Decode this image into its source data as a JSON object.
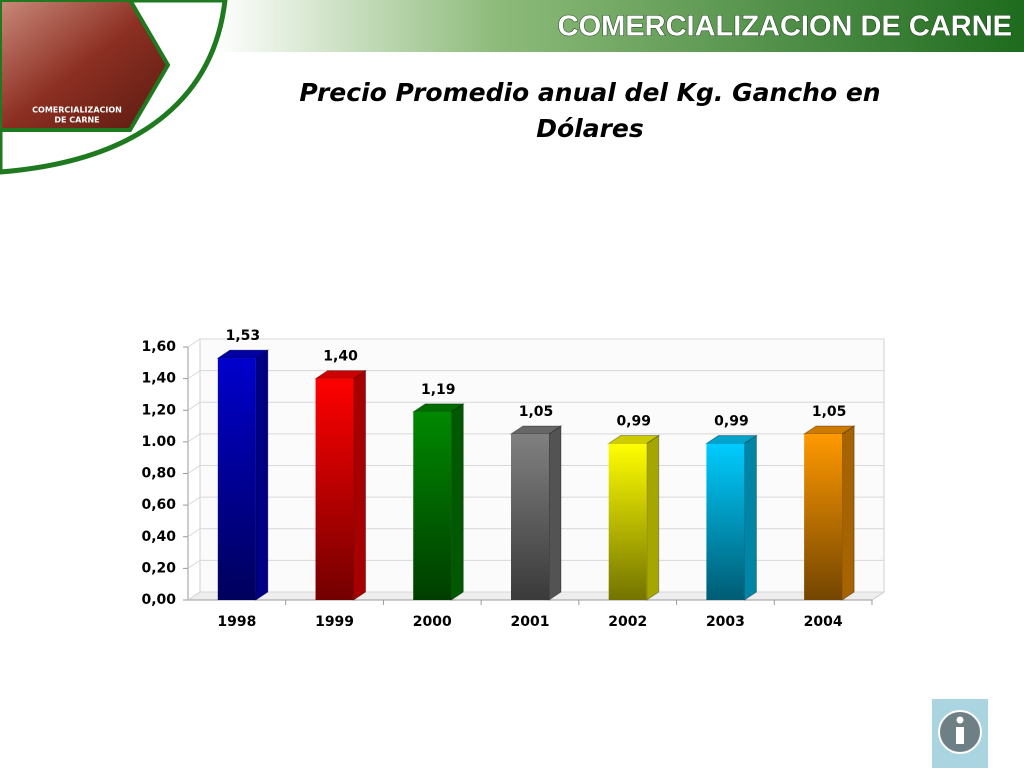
{
  "header": {
    "title": "COMERCIALIZACION DE CARNE"
  },
  "logo": {
    "lines": [
      "COMERCIALIZACION",
      "DE CARNE"
    ]
  },
  "chart_data": {
    "type": "bar3d",
    "title": [
      "Precio Promedio anual del Kg. Gancho en",
      "Dólares"
    ],
    "categories": [
      "1998",
      "1999",
      "2000",
      "2001",
      "2002",
      "2003",
      "2004"
    ],
    "values": [
      1.53,
      1.4,
      1.19,
      1.05,
      0.99,
      0.99,
      1.05
    ],
    "value_labels": [
      "1,53",
      "1,40",
      "1,19",
      "1,05",
      "0,99",
      "0,99",
      "1,05"
    ],
    "colors": [
      "#0000cc",
      "#ff0000",
      "#008800",
      "#808080",
      "#ffff00",
      "#00ccff",
      "#ff9900"
    ],
    "ylim": [
      0,
      1.6
    ],
    "yticks": [
      {
        "value": 0,
        "label": "0,00"
      },
      {
        "value": 0.2,
        "label": "0,20"
      },
      {
        "value": 0.4,
        "label": "0,40"
      },
      {
        "value": 0.6,
        "label": "0,60"
      },
      {
        "value": 0.8,
        "label": "0,80"
      },
      {
        "value": 1,
        "label": "1.00"
      },
      {
        "value": 1.2,
        "label": "1,20"
      },
      {
        "value": 1.4,
        "label": "1,40"
      },
      {
        "value": 1.6,
        "label": "1,60"
      }
    ],
    "grid": true
  }
}
